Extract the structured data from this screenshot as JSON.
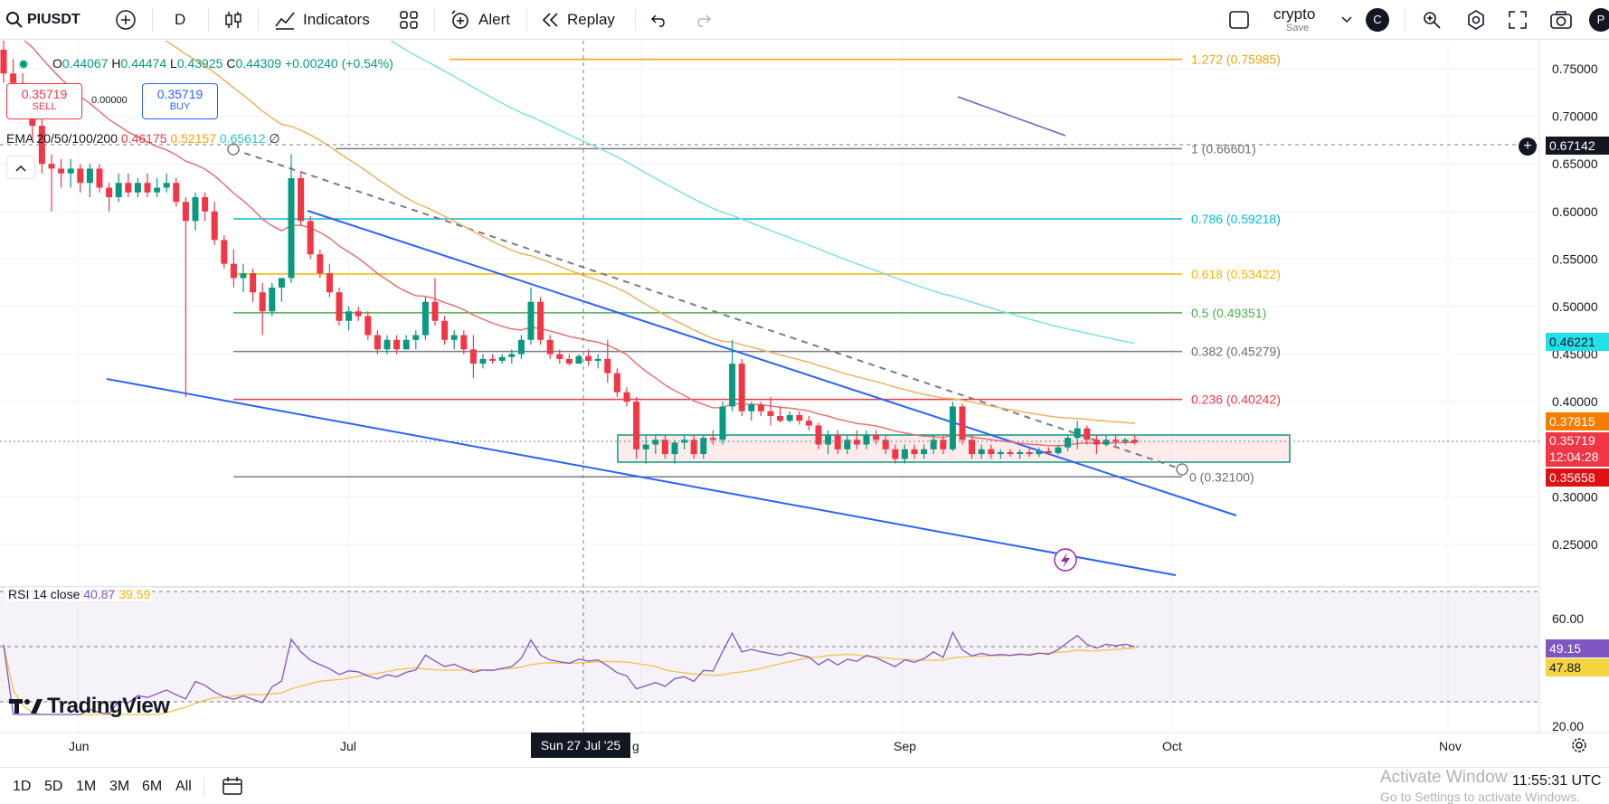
{
  "toolbar": {
    "symbol": "PIUSDT",
    "interval": "D",
    "indicators_label": "Indicators",
    "alert_label": "Alert",
    "replay_label": "Replay",
    "layout_name": "crypto",
    "layout_sub": "Save",
    "layout_avatar": "C",
    "user_avatar": "P"
  },
  "legend": {
    "open_k": "O",
    "open": "0.44067",
    "high_k": "H",
    "high": "0.44474",
    "low_k": "L",
    "low": "0.43925",
    "close_k": "C",
    "close": "0.44309",
    "change": "+0.00240 (+0.54%)",
    "sell_price": "0.35719",
    "sell_label": "SELL",
    "spread": "0.00000",
    "buy_price": "0.35719",
    "buy_label": "BUY",
    "ema_label": "EMA 20/50/100/200",
    "ema20": "0.46175",
    "ema50": "0.52157",
    "ema100": "0.65612",
    "ema200": "∅",
    "rsi_label": "RSI 14 close",
    "rsi_value": "40.87",
    "rsi_ma": "39.59"
  },
  "price_scale": {
    "labels": [
      "0.75000",
      "0.70000",
      "0.65000",
      "0.60000",
      "0.55000",
      "0.50000",
      "0.45000",
      "0.40000",
      "0.30000",
      "0.25000"
    ],
    "values": [
      0.75,
      0.7,
      0.65,
      0.6,
      0.55,
      0.5,
      0.45,
      0.4,
      0.3,
      0.25
    ],
    "crosshair_price": "0.67142",
    "ema100_tag": "0.46221",
    "ema20_tag": "0.37815",
    "last_price": "0.35719",
    "countdown": "12:04:28",
    "low_tag": "0.35658"
  },
  "rsi_scale": {
    "labels": [
      "60.00",
      "20.00"
    ],
    "rsi_tag": "49.15",
    "ma_tag": "47.88"
  },
  "fib_levels": [
    {
      "label": "1.272 (0.75985)",
      "price": 0.75985,
      "color": "#f0a30a"
    },
    {
      "label": "1 (0.66601)",
      "price": 0.66601,
      "color": "#787b86"
    },
    {
      "label": "0.786 (0.59218)",
      "price": 0.59218,
      "color": "#00bcd4"
    },
    {
      "label": "0.618 (0.53422)",
      "price": 0.53422,
      "color": "#f5b800"
    },
    {
      "label": "0.5 (0.49351)",
      "price": 0.49351,
      "color": "#4caf50"
    },
    {
      "label": "0.382 (0.45279)",
      "price": 0.45279,
      "color": "#787b86"
    },
    {
      "label": "0.236 (0.40242)",
      "price": 0.40242,
      "color": "#f23645"
    },
    {
      "label": "0 (0.32100)",
      "price": 0.321,
      "color": "#787b86"
    }
  ],
  "time_axis": {
    "labels": [
      "Jun",
      "Jul",
      "Sep",
      "Oct",
      "Nov"
    ],
    "hover_label": "Sun 27 Jul '25",
    "partial_label": "g"
  },
  "bottom": {
    "ranges": [
      "1D",
      "5D",
      "1M",
      "3M",
      "6M",
      "All"
    ],
    "clock": "11:55:31 UTC",
    "watermark": "Activate Windows",
    "watermark_sub": "Go to Settings to activate Windows."
  },
  "brand": "TradingView",
  "colors": {
    "up": "#089981",
    "down": "#f23645",
    "ema20": "#e57373",
    "ema50": "#f0b060",
    "ema100": "#7fe0e0",
    "rsi": "#7e57c2",
    "rsi_ma": "#f5c242",
    "channel": "#2962ff"
  },
  "chart_data": {
    "type": "candlestick",
    "symbol": "PIUSDT",
    "start_date": "2025-05-23",
    "candles": [
      [
        0.77,
        0.79,
        0.735,
        0.745
      ],
      [
        0.745,
        0.76,
        0.72,
        0.735
      ],
      [
        0.735,
        0.745,
        0.7,
        0.705
      ],
      [
        0.705,
        0.72,
        0.675,
        0.69
      ],
      [
        0.69,
        0.7,
        0.64,
        0.65
      ],
      [
        0.65,
        0.66,
        0.6,
        0.645
      ],
      [
        0.645,
        0.655,
        0.625,
        0.64
      ],
      [
        0.64,
        0.655,
        0.625,
        0.645
      ],
      [
        0.645,
        0.65,
        0.62,
        0.63
      ],
      [
        0.63,
        0.65,
        0.615,
        0.645
      ],
      [
        0.645,
        0.65,
        0.62,
        0.625
      ],
      [
        0.625,
        0.63,
        0.6,
        0.615
      ],
      [
        0.615,
        0.64,
        0.61,
        0.63
      ],
      [
        0.63,
        0.64,
        0.615,
        0.62
      ],
      [
        0.62,
        0.635,
        0.615,
        0.63
      ],
      [
        0.63,
        0.64,
        0.615,
        0.62
      ],
      [
        0.62,
        0.635,
        0.615,
        0.625
      ],
      [
        0.625,
        0.64,
        0.62,
        0.63
      ],
      [
        0.63,
        0.635,
        0.605,
        0.61
      ],
      [
        0.61,
        0.615,
        0.405,
        0.59
      ],
      [
        0.59,
        0.62,
        0.58,
        0.615
      ],
      [
        0.615,
        0.62,
        0.59,
        0.6
      ],
      [
        0.6,
        0.61,
        0.565,
        0.57
      ],
      [
        0.57,
        0.575,
        0.54,
        0.545
      ],
      [
        0.545,
        0.56,
        0.52,
        0.53
      ],
      [
        0.53,
        0.545,
        0.515,
        0.535
      ],
      [
        0.535,
        0.54,
        0.505,
        0.515
      ],
      [
        0.515,
        0.525,
        0.47,
        0.495
      ],
      [
        0.495,
        0.525,
        0.49,
        0.52
      ],
      [
        0.52,
        0.53,
        0.505,
        0.53
      ],
      [
        0.53,
        0.66,
        0.525,
        0.635
      ],
      [
        0.635,
        0.64,
        0.585,
        0.59
      ],
      [
        0.59,
        0.595,
        0.55,
        0.555
      ],
      [
        0.555,
        0.56,
        0.53,
        0.535
      ],
      [
        0.535,
        0.545,
        0.51,
        0.515
      ],
      [
        0.515,
        0.52,
        0.48,
        0.485
      ],
      [
        0.485,
        0.5,
        0.475,
        0.495
      ],
      [
        0.495,
        0.5,
        0.485,
        0.49
      ],
      [
        0.49,
        0.495,
        0.465,
        0.47
      ],
      [
        0.47,
        0.475,
        0.45,
        0.455
      ],
      [
        0.455,
        0.47,
        0.45,
        0.465
      ],
      [
        0.465,
        0.47,
        0.45,
        0.455
      ],
      [
        0.455,
        0.47,
        0.455,
        0.465
      ],
      [
        0.465,
        0.475,
        0.455,
        0.47
      ],
      [
        0.47,
        0.51,
        0.465,
        0.505
      ],
      [
        0.505,
        0.53,
        0.48,
        0.485
      ],
      [
        0.485,
        0.49,
        0.46,
        0.465
      ],
      [
        0.465,
        0.475,
        0.455,
        0.47
      ],
      [
        0.47,
        0.475,
        0.45,
        0.455
      ],
      [
        0.455,
        0.47,
        0.425,
        0.44
      ],
      [
        0.44,
        0.45,
        0.435,
        0.445
      ],
      [
        0.445,
        0.45,
        0.44,
        0.443
      ],
      [
        0.443,
        0.45,
        0.44,
        0.447
      ],
      [
        0.447,
        0.455,
        0.44,
        0.45
      ],
      [
        0.45,
        0.47,
        0.445,
        0.465
      ],
      [
        0.465,
        0.52,
        0.46,
        0.505
      ],
      [
        0.505,
        0.51,
        0.46,
        0.465
      ],
      [
        0.465,
        0.47,
        0.445,
        0.45
      ],
      [
        0.45,
        0.455,
        0.44,
        0.445
      ],
      [
        0.445,
        0.45,
        0.438,
        0.44
      ],
      [
        0.44,
        0.45,
        0.44,
        0.448
      ],
      [
        0.448,
        0.455,
        0.438,
        0.443
      ],
      [
        0.443,
        0.45,
        0.435,
        0.445
      ],
      [
        0.445,
        0.465,
        0.42,
        0.43
      ],
      [
        0.43,
        0.435,
        0.405,
        0.41
      ],
      [
        0.41,
        0.415,
        0.395,
        0.4
      ],
      [
        0.4,
        0.405,
        0.34,
        0.35
      ],
      [
        0.35,
        0.365,
        0.335,
        0.355
      ],
      [
        0.355,
        0.365,
        0.345,
        0.36
      ],
      [
        0.36,
        0.365,
        0.34,
        0.345
      ],
      [
        0.345,
        0.36,
        0.335,
        0.357
      ],
      [
        0.357,
        0.365,
        0.35,
        0.36
      ],
      [
        0.36,
        0.365,
        0.34,
        0.345
      ],
      [
        0.345,
        0.365,
        0.34,
        0.362
      ],
      [
        0.362,
        0.37,
        0.355,
        0.36
      ],
      [
        0.36,
        0.4,
        0.355,
        0.395
      ],
      [
        0.395,
        0.465,
        0.39,
        0.44
      ],
      [
        0.44,
        0.445,
        0.385,
        0.39
      ],
      [
        0.39,
        0.4,
        0.38,
        0.397
      ],
      [
        0.397,
        0.4,
        0.385,
        0.39
      ],
      [
        0.39,
        0.405,
        0.375,
        0.385
      ],
      [
        0.385,
        0.395,
        0.378,
        0.38
      ],
      [
        0.38,
        0.39,
        0.378,
        0.386
      ],
      [
        0.386,
        0.39,
        0.376,
        0.38
      ],
      [
        0.38,
        0.385,
        0.37,
        0.375
      ],
      [
        0.375,
        0.378,
        0.35,
        0.355
      ],
      [
        0.355,
        0.37,
        0.345,
        0.365
      ],
      [
        0.365,
        0.37,
        0.345,
        0.35
      ],
      [
        0.35,
        0.365,
        0.345,
        0.36
      ],
      [
        0.36,
        0.37,
        0.35,
        0.355
      ],
      [
        0.355,
        0.37,
        0.35,
        0.365
      ],
      [
        0.365,
        0.37,
        0.355,
        0.36
      ],
      [
        0.36,
        0.365,
        0.345,
        0.35
      ],
      [
        0.35,
        0.355,
        0.335,
        0.34
      ],
      [
        0.34,
        0.355,
        0.335,
        0.35
      ],
      [
        0.35,
        0.355,
        0.34,
        0.345
      ],
      [
        0.345,
        0.355,
        0.34,
        0.35
      ],
      [
        0.35,
        0.365,
        0.345,
        0.36
      ],
      [
        0.36,
        0.365,
        0.345,
        0.35
      ],
      [
        0.35,
        0.4,
        0.348,
        0.395
      ],
      [
        0.395,
        0.398,
        0.355,
        0.36
      ],
      [
        0.36,
        0.365,
        0.34,
        0.345
      ],
      [
        0.345,
        0.355,
        0.34,
        0.35
      ],
      [
        0.35,
        0.355,
        0.34,
        0.345
      ],
      [
        0.345,
        0.35,
        0.34,
        0.347
      ],
      [
        0.347,
        0.35,
        0.342,
        0.345
      ],
      [
        0.345,
        0.35,
        0.34,
        0.347
      ],
      [
        0.347,
        0.352,
        0.342,
        0.345
      ],
      [
        0.345,
        0.352,
        0.342,
        0.348
      ],
      [
        0.348,
        0.352,
        0.344,
        0.346
      ],
      [
        0.346,
        0.355,
        0.344,
        0.352
      ],
      [
        0.352,
        0.365,
        0.348,
        0.362
      ],
      [
        0.362,
        0.38,
        0.35,
        0.372
      ],
      [
        0.372,
        0.375,
        0.355,
        0.36
      ],
      [
        0.36,
        0.365,
        0.345,
        0.355
      ],
      [
        0.355,
        0.365,
        0.353,
        0.36
      ],
      [
        0.36,
        0.365,
        0.354,
        0.358
      ],
      [
        0.358,
        0.362,
        0.355,
        0.36
      ],
      [
        0.36,
        0.365,
        0.355,
        0.357
      ]
    ],
    "price_range": [
      0.22,
      0.78
    ],
    "rsi_range": [
      15,
      75
    ],
    "grid": true,
    "legend_position": "top-left"
  }
}
